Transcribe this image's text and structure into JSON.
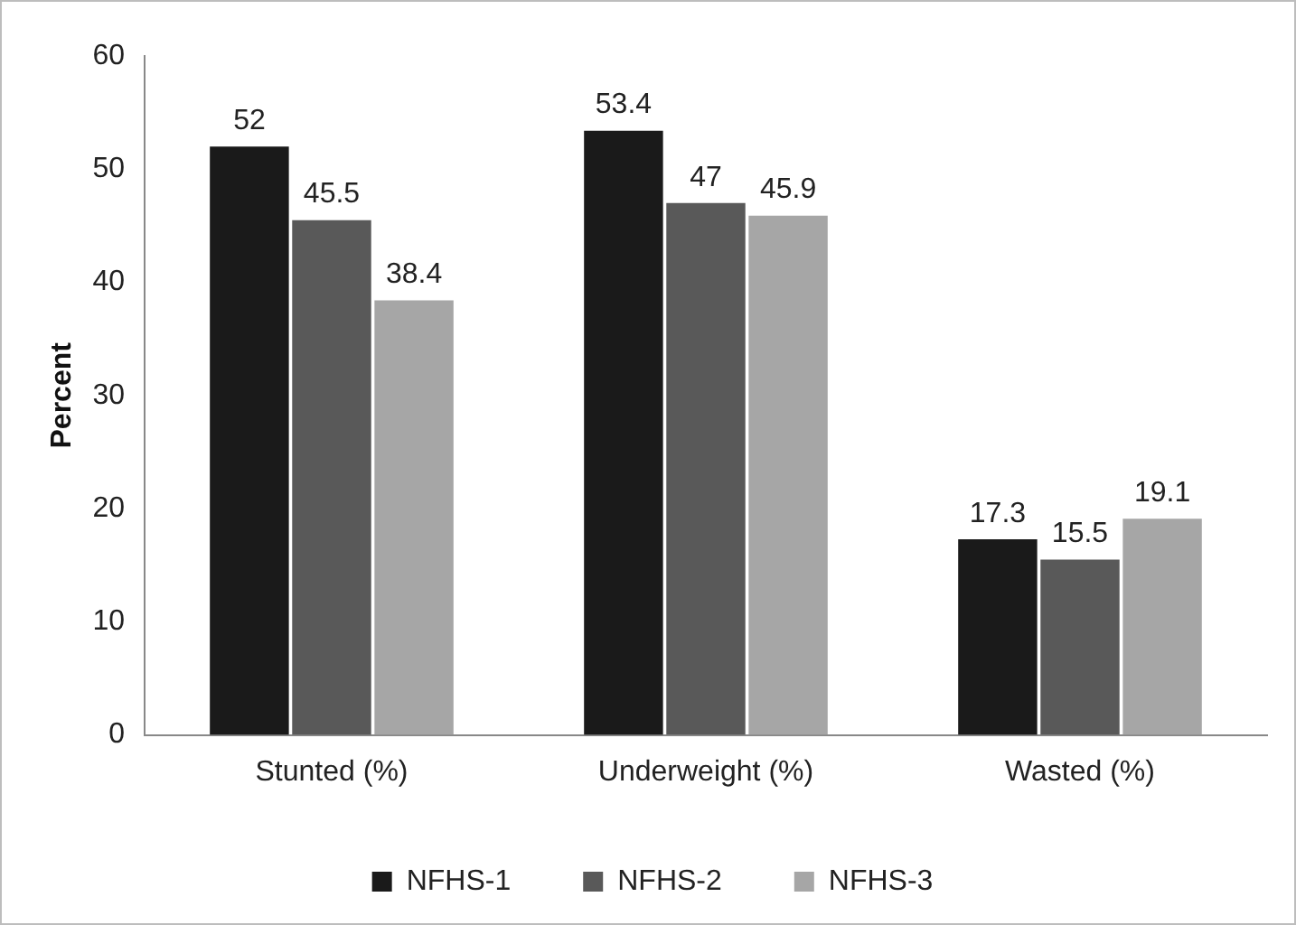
{
  "chart_data": {
    "type": "bar",
    "ylabel": "Percent",
    "categories": [
      "Stunted (%)",
      "Underweight (%)",
      "Wasted (%)"
    ],
    "series": [
      {
        "name": "NFHS-1",
        "color": "#1a1a1a",
        "values": [
          52,
          53.4,
          17.3
        ]
      },
      {
        "name": "NFHS-2",
        "color": "#595959",
        "values": [
          45.5,
          47,
          15.5
        ]
      },
      {
        "name": "NFHS-3",
        "color": "#a6a6a6",
        "values": [
          38.4,
          45.9,
          19.1
        ]
      }
    ],
    "ylim": [
      0,
      60
    ],
    "yticks": [
      0,
      10,
      20,
      30,
      40,
      50,
      60
    ],
    "grid": false,
    "legend": "bottom",
    "data_labels": true
  }
}
